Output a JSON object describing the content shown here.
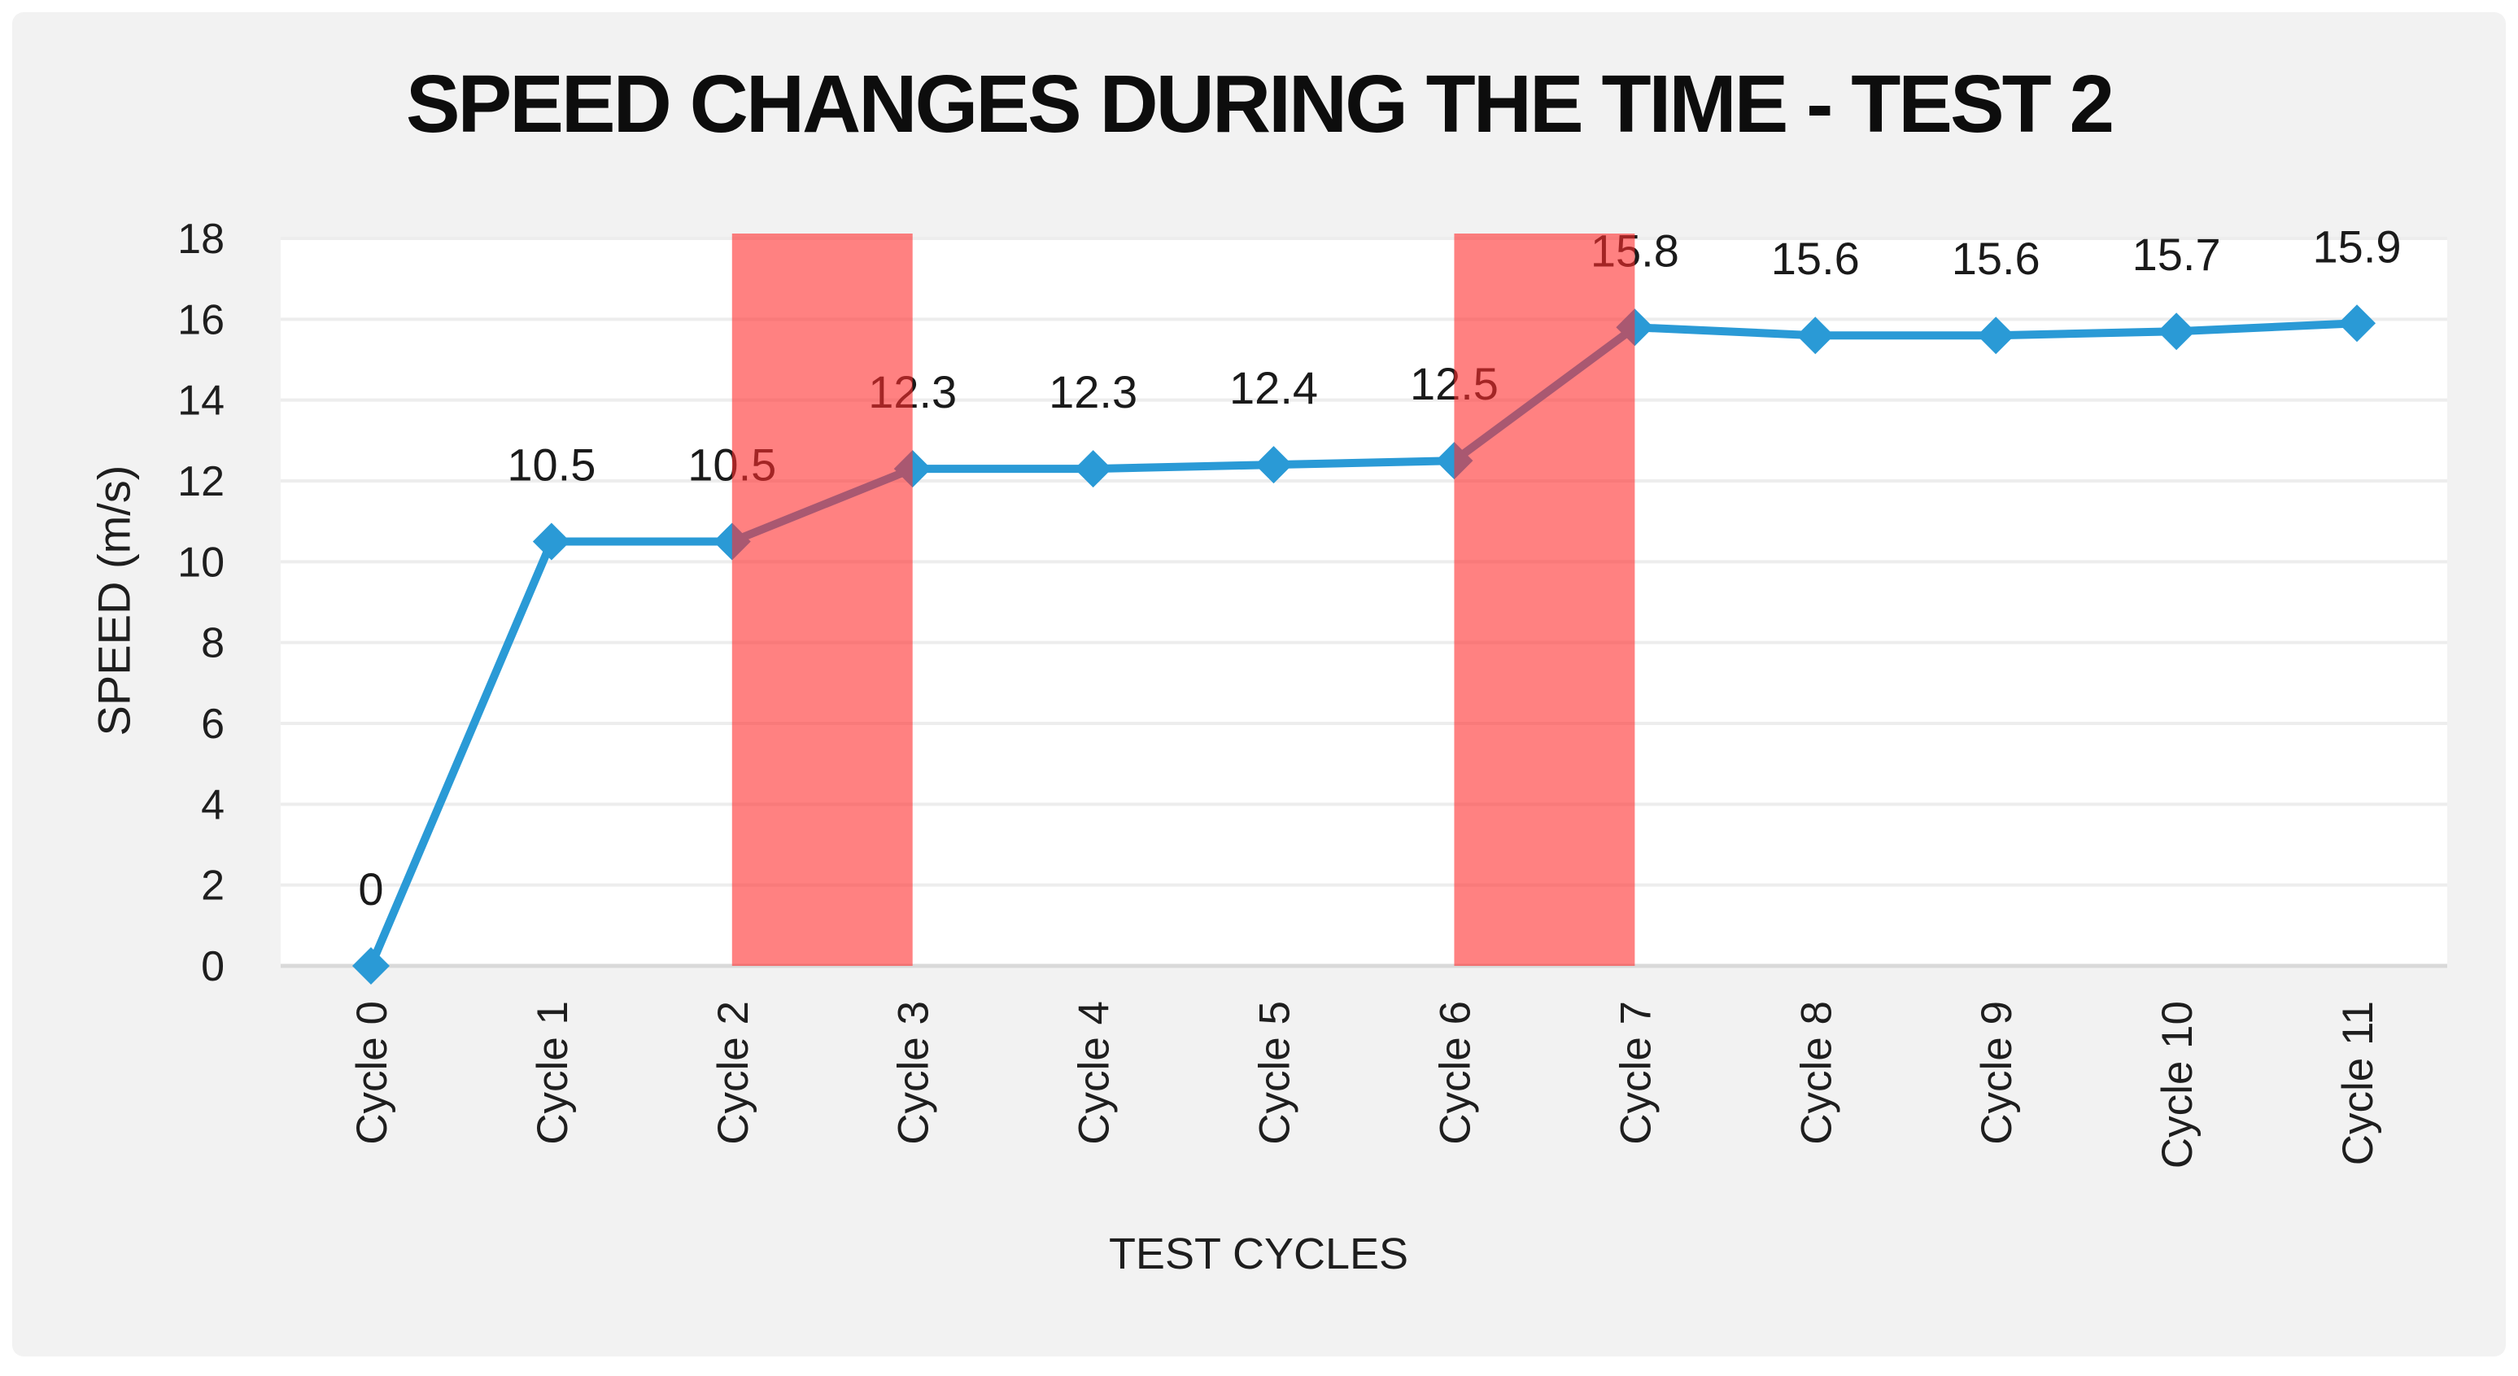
{
  "title": "SPEED CHANGES DURING THE TIME - TEST 2",
  "chart_data": {
    "type": "line",
    "title": "SPEED CHANGES DURING THE TIME - TEST 2",
    "xlabel": "TEST CYCLES",
    "ylabel": "SPEED (m/s)",
    "categories": [
      "Cycle 0",
      "Cycle 1",
      "Cycle 2",
      "Cycle 3",
      "Cycle 4",
      "Cycle 5",
      "Cycle 6",
      "Cycle 7",
      "Cycle 8",
      "Cycle 9",
      "Cycle 10",
      "Cycle 11"
    ],
    "series": [
      {
        "name": "Speed (m/s)",
        "values": [
          0,
          10.5,
          10.5,
          12.3,
          12.3,
          12.4,
          12.5,
          15.8,
          15.6,
          15.6,
          15.7,
          15.9
        ],
        "data_labels": [
          "0",
          "10.5",
          "10.5",
          "12.3",
          "12.3",
          "12.4",
          "12.5",
          "15.8",
          "15.6",
          "15.6",
          "15.7",
          "15.9"
        ]
      }
    ],
    "ylim": [
      0,
      18
    ],
    "yticks": [
      0,
      2,
      4,
      6,
      8,
      10,
      12,
      14,
      16,
      18
    ],
    "grid": true,
    "legend": "none",
    "marker": "diamond",
    "highlight_bands": [
      {
        "from_category_index": 2,
        "to_category_index": 3
      },
      {
        "from_category_index": 6,
        "to_category_index": 7
      }
    ],
    "colors": {
      "line": "#2A9AD6",
      "band": "#FF2D2D",
      "band_opacity": 0.6,
      "gridline": "#EDEDED",
      "axis_line": "#D9D9D9",
      "plot_background": "#FFFFFF",
      "chart_background": "#F2F2F2",
      "page_background": "#FFFFFF",
      "text": "#1E1E1E",
      "data_label_text": "#1A1A1A",
      "title_text": "#0D0D0D"
    }
  }
}
